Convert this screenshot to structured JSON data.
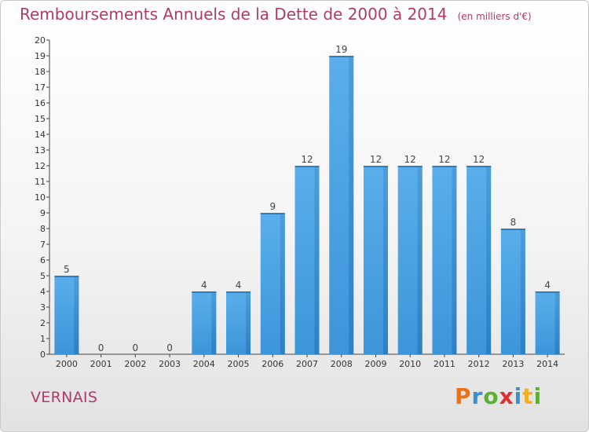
{
  "chart_data": {
    "type": "bar",
    "title": "Remboursements Annuels de la Dette de 2000 à 2014",
    "unit_label": "(en milliers d'€)",
    "categories": [
      "2000",
      "2001",
      "2002",
      "2003",
      "2004",
      "2005",
      "2006",
      "2007",
      "2008",
      "2009",
      "2010",
      "2011",
      "2012",
      "2013",
      "2014"
    ],
    "values": [
      5,
      0,
      0,
      0,
      4,
      4,
      9,
      12,
      19,
      12,
      12,
      12,
      12,
      8,
      4
    ],
    "ylim": [
      0,
      20
    ],
    "yticks": [
      0,
      1,
      2,
      3,
      4,
      5,
      6,
      7,
      8,
      9,
      10,
      11,
      12,
      13,
      14,
      15,
      16,
      17,
      18,
      19,
      20
    ],
    "grid": false,
    "bar_color": "#3d95d9"
  },
  "commune": "VERNAIS",
  "logo": {
    "text": "Proxiti",
    "colors": [
      "#e8731c",
      "#3a8fd3",
      "#5bb033",
      "#e52d2d",
      "#3a8fd3",
      "#f2b01e",
      "#5bb033"
    ]
  }
}
